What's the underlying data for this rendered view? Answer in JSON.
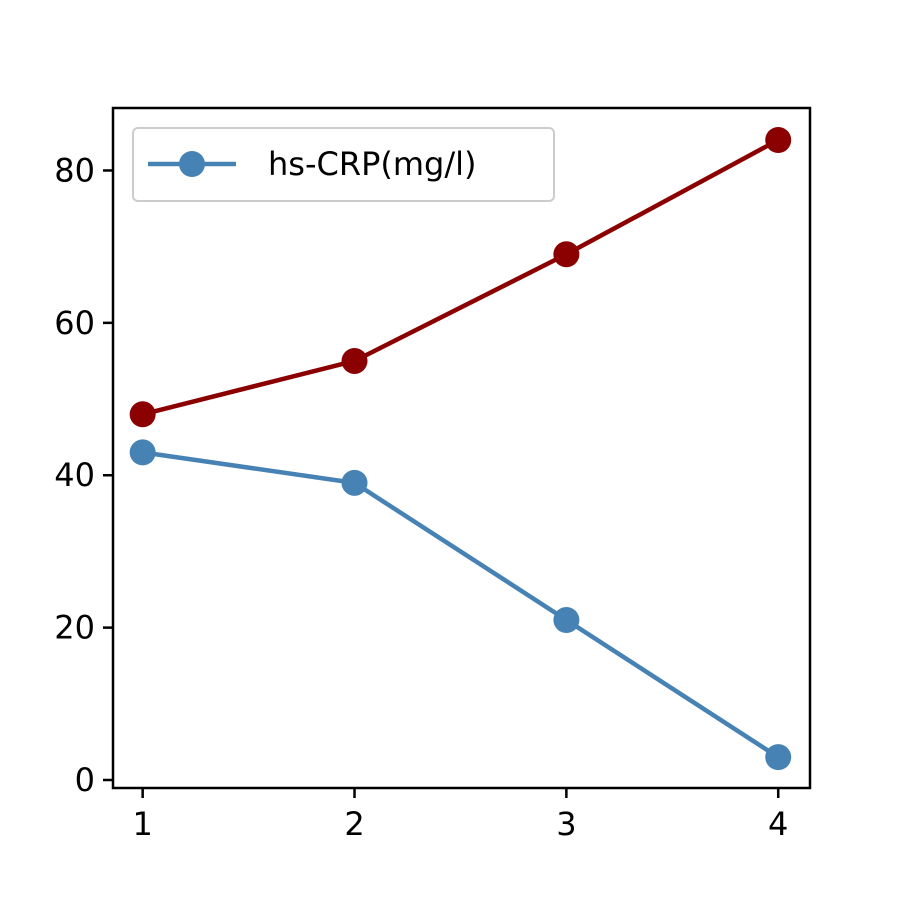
{
  "chart_data": {
    "type": "line",
    "x": [
      1,
      2,
      3,
      4
    ],
    "series": [
      {
        "name": "hs-CRP(mg/l)",
        "values": [
          43,
          39,
          21,
          3
        ],
        "color": "#4682b4",
        "in_legend": true
      },
      {
        "values": [
          48,
          55,
          69,
          84
        ],
        "color": "#8b0000",
        "in_legend": false
      }
    ],
    "xlim": [
      0.86,
      4.15
    ],
    "ylim": [
      -1.05,
      88.2
    ],
    "xticks": [
      1,
      2,
      3,
      4
    ],
    "yticks": [
      0,
      20,
      40,
      60,
      80
    ],
    "title": "",
    "xlabel": "",
    "ylabel": "",
    "grid": false,
    "legend_position": "top-left"
  }
}
